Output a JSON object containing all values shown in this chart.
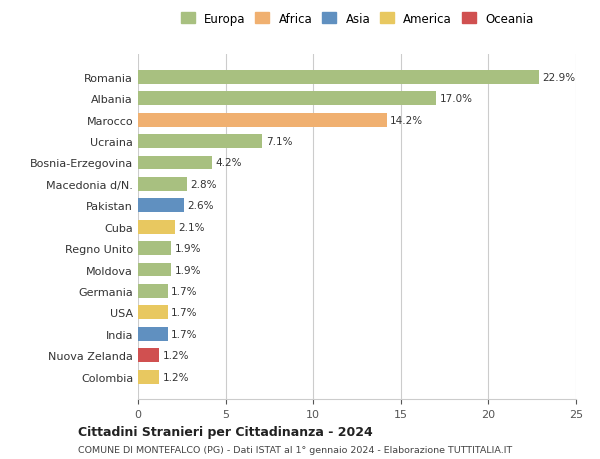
{
  "countries": [
    "Romania",
    "Albania",
    "Marocco",
    "Ucraina",
    "Bosnia-Erzegovina",
    "Macedonia d/N.",
    "Pakistan",
    "Cuba",
    "Regno Unito",
    "Moldova",
    "Germania",
    "USA",
    "India",
    "Nuova Zelanda",
    "Colombia"
  ],
  "values": [
    22.9,
    17.0,
    14.2,
    7.1,
    4.2,
    2.8,
    2.6,
    2.1,
    1.9,
    1.9,
    1.7,
    1.7,
    1.7,
    1.2,
    1.2
  ],
  "continents": [
    "Europa",
    "Europa",
    "Africa",
    "Europa",
    "Europa",
    "Europa",
    "Asia",
    "America",
    "Europa",
    "Europa",
    "Europa",
    "America",
    "Asia",
    "Oceania",
    "America"
  ],
  "continent_colors": {
    "Europa": "#a8c080",
    "Africa": "#f0b070",
    "Asia": "#6090c0",
    "America": "#e8c860",
    "Oceania": "#d05050"
  },
  "legend_order": [
    "Europa",
    "Africa",
    "Asia",
    "America",
    "Oceania"
  ],
  "xlim": [
    0,
    25
  ],
  "xticks": [
    0,
    5,
    10,
    15,
    20,
    25
  ],
  "title": "Cittadini Stranieri per Cittadinanza - 2024",
  "subtitle": "COMUNE DI MONTEFALCO (PG) - Dati ISTAT al 1° gennaio 2024 - Elaborazione TUTTITALIA.IT",
  "bg_color": "#ffffff",
  "grid_color": "#cccccc",
  "bar_height": 0.65
}
